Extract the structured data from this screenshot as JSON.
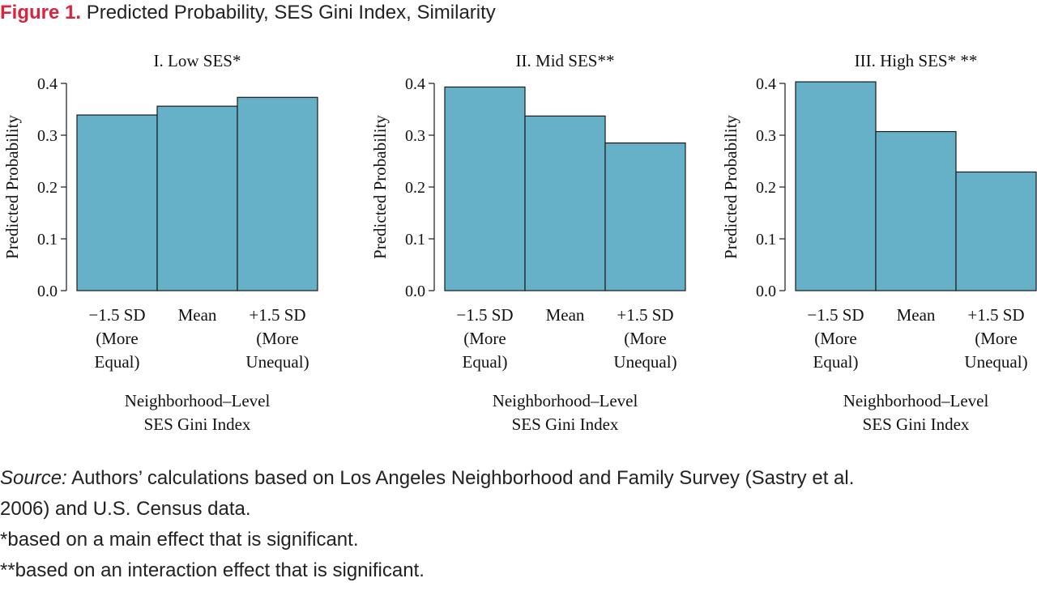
{
  "figure": {
    "label": "Figure 1.",
    "title": "Predicted Probability, SES Gini Index, Similarity"
  },
  "colors": {
    "bar_fill": "#66b0c8",
    "bar_stroke": "#1a1a1a",
    "label_red": "#d8243c"
  },
  "chart_data": [
    {
      "type": "bar",
      "title": "I. Low SES*",
      "ylabel": "Predicted Probability",
      "xlabel": [
        "Neighborhood–Level",
        "SES Gini Index"
      ],
      "categories": [
        [
          "−1.5 SD",
          "(More",
          "Equal)"
        ],
        [
          "Mean"
        ],
        [
          "+1.5 SD",
          "(More",
          "Unequal)"
        ]
      ],
      "values": [
        0.339,
        0.356,
        0.373
      ],
      "ylim": [
        0,
        0.4
      ],
      "yticks": [
        "0.0",
        "0.1",
        "0.2",
        "0.3",
        "0.4"
      ],
      "grid": false
    },
    {
      "type": "bar",
      "title": "II. Mid SES**",
      "ylabel": "Predicted Probability",
      "xlabel": [
        "Neighborhood–Level",
        "SES Gini Index"
      ],
      "categories": [
        [
          "−1.5 SD",
          "(More",
          "Equal)"
        ],
        [
          "Mean"
        ],
        [
          "+1.5 SD",
          "(More",
          "Unequal)"
        ]
      ],
      "values": [
        0.393,
        0.337,
        0.285
      ],
      "ylim": [
        0,
        0.4
      ],
      "yticks": [
        "0.0",
        "0.1",
        "0.2",
        "0.3",
        "0.4"
      ],
      "grid": false
    },
    {
      "type": "bar",
      "title": "III. High SES* **",
      "ylabel": "Predicted Probability",
      "xlabel": [
        "Neighborhood–Level",
        "SES Gini Index"
      ],
      "categories": [
        [
          "−1.5 SD",
          "(More",
          "Equal)"
        ],
        [
          "Mean"
        ],
        [
          "+1.5 SD",
          "(More",
          "Unequal)"
        ]
      ],
      "values": [
        0.403,
        0.307,
        0.229
      ],
      "ylim": [
        0,
        0.4
      ],
      "yticks": [
        "0.0",
        "0.1",
        "0.2",
        "0.3",
        "0.4"
      ],
      "grid": false
    }
  ],
  "notes": {
    "source_label": "Source:",
    "source_line1": " Authors’ calculations based on Los Angeles Neighborhood and Family Survey (Sastry et al.",
    "source_line2": "2006) and U.S. Census data.",
    "note1": "*based on a main effect that is significant.",
    "note2": "**based on an interaction effect that is significant."
  }
}
